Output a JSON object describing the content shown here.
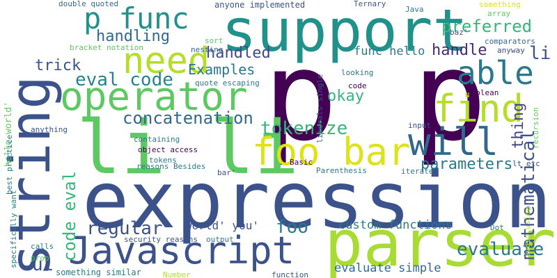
{
  "words": [
    {
      "text": "expression",
      "color": "#3b528b"
    },
    {
      "text": "p p",
      "color": "#440154"
    },
    {
      "text": "string",
      "color": "#3b528b"
    },
    {
      "text": "support",
      "color": "#21918c"
    },
    {
      "text": "li li",
      "color": "#5ec962"
    },
    {
      "text": "parser",
      "color": "#a8db34"
    },
    {
      "text": "Javascript",
      "color": "#3b528b"
    },
    {
      "text": "operator",
      "color": "#5ec962"
    },
    {
      "text": "foo bar",
      "color": "#dde318"
    },
    {
      "text": "need",
      "color": "#b5de2b"
    },
    {
      "text": "will",
      "color": "#31688e"
    },
    {
      "text": "find",
      "color": "#b5de2b"
    },
    {
      "text": "p func",
      "color": "#21918c"
    },
    {
      "text": "able",
      "color": "#29788e"
    },
    {
      "text": "mathematical",
      "color": "#3b528b"
    },
    {
      "text": "tokenize",
      "color": "#35b779"
    },
    {
      "text": "code eval",
      "color": "#35b779"
    },
    {
      "text": "regular",
      "color": "#3b528b"
    },
    {
      "text": "evaluate",
      "color": "#2a788e"
    },
    {
      "text": "eval code",
      "color": "#26828e"
    },
    {
      "text": "concatenation",
      "color": "#31688e"
    },
    {
      "text": "preferred",
      "color": "#35b779"
    },
    {
      "text": "handling",
      "color": "#31688e"
    },
    {
      "text": "parameters",
      "color": "#2a788e"
    },
    {
      "text": "handled",
      "color": "#3e4a89"
    },
    {
      "text": "trick",
      "color": "#3b528b"
    },
    {
      "text": "Examples",
      "color": "#2a788e"
    },
    {
      "text": "handle",
      "color": "#482878"
    },
    {
      "text": "thing",
      "color": "#414487"
    },
    {
      "text": "li",
      "color": "#3b528b"
    },
    {
      "text": "foo",
      "color": "#2a788e"
    },
    {
      "text": "ul",
      "color": "#3b528b"
    },
    {
      "text": "okay",
      "color": "#35b779"
    },
    {
      "text": "custom functions",
      "color": "#2a788e"
    },
    {
      "text": "evaluate simple",
      "color": "#31688e"
    },
    {
      "text": "func hello",
      "color": "#2a788e"
    },
    {
      "text": "world' you'",
      "color": "#3b528b"
    },
    {
      "text": "hello world'",
      "color": "#5ec962"
    },
    {
      "text": "double quoted",
      "color": "#31688e"
    },
    {
      "text": "anyone implemented",
      "color": "#3b528b"
    },
    {
      "text": "Ternary",
      "color": "#3b528b"
    },
    {
      "text": "Java",
      "color": "#2a788e"
    },
    {
      "text": "something",
      "color": "#dde318"
    },
    {
      "text": "array",
      "color": "#5ec962"
    },
    {
      "text": "baz'",
      "color": "#3b528b"
    },
    {
      "text": "comparators",
      "color": "#31688e"
    },
    {
      "text": "anyway",
      "color": "#3e4a89"
    },
    {
      "text": "sort",
      "color": "#5ec962"
    },
    {
      "text": "nesting",
      "color": "#31688e"
    },
    {
      "text": "bracket notation",
      "color": "#5ec962"
    },
    {
      "text": "quote escaping",
      "color": "#2a788e"
    },
    {
      "text": "looking",
      "color": "#2a788e"
    },
    {
      "text": "code",
      "color": "#440154"
    },
    {
      "text": "boolean",
      "color": "#440154"
    },
    {
      "text": "literals single",
      "color": "#3b528b"
    },
    {
      "text": "anything",
      "color": "#3b528b"
    },
    {
      "text": "best practice",
      "color": "#2a788e"
    },
    {
      "text": "containing",
      "color": "#2a788e"
    },
    {
      "text": "object access",
      "color": "#440154"
    },
    {
      "text": "tokens",
      "color": "#2a788e"
    },
    {
      "text": "reasons Besides",
      "color": "#2a788e"
    },
    {
      "text": "Basic",
      "color": "#440154"
    },
    {
      "text": "input",
      "color": "#3b528b"
    },
    {
      "text": "recursion",
      "color": "#5ec962"
    },
    {
      "text": "lt etc",
      "color": "#3b528b"
    },
    {
      "text": "bar'",
      "color": "#3b528b"
    },
    {
      "text": "Parenthesis",
      "color": "#2a788e"
    },
    {
      "text": "iterate",
      "color": "#2a788e"
    },
    {
      "text": "specifically want",
      "color": "#2a788e"
    },
    {
      "text": "calls",
      "color": "#2a788e"
    },
    {
      "text": "prop",
      "color": "#5ec962"
    },
    {
      "text": "security reasons",
      "color": "#3b528b"
    },
    {
      "text": "output",
      "color": "#2a788e"
    },
    {
      "text": "something similar",
      "color": "#2a788e"
    },
    {
      "text": "Number",
      "color": "#b5de2b"
    },
    {
      "text": "function",
      "color": "#3b528b"
    },
    {
      "text": "Dot",
      "color": "#2a788e"
    },
    {
      "text": "avoid using",
      "color": "#b5de2b"
    }
  ]
}
